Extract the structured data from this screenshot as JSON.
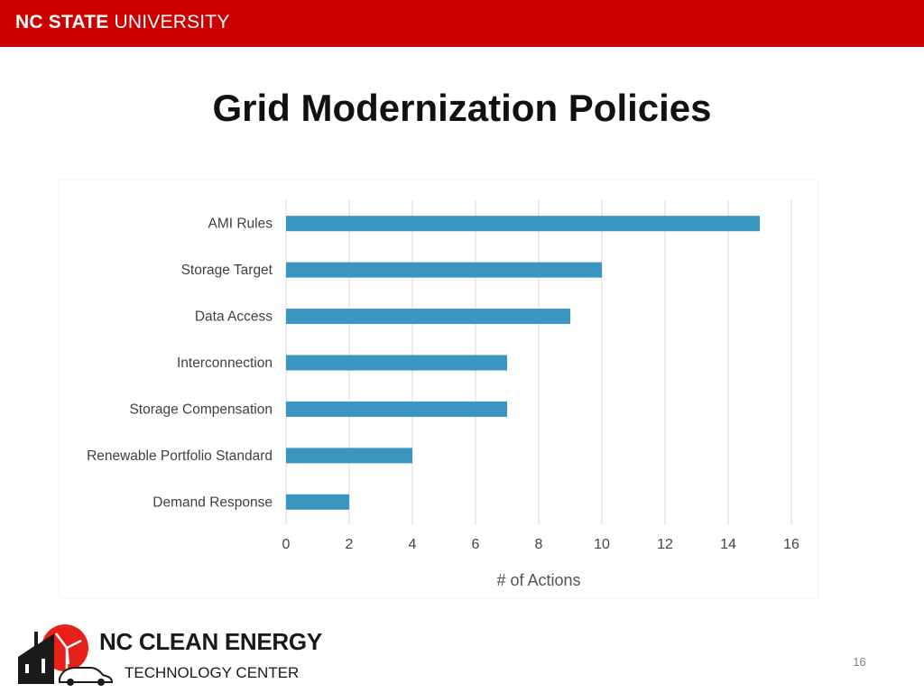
{
  "header": {
    "brand_bold": "NC STATE",
    "brand_rest": " UNIVERSITY",
    "bar_color": "#cc0000"
  },
  "slide": {
    "title": "Grid Modernization Policies",
    "page_number": "16"
  },
  "footer": {
    "logo_line1": "NC CLEAN ENERGY",
    "logo_line2": "TECHNOLOGY CENTER"
  },
  "chart_data": {
    "type": "bar",
    "orientation": "horizontal",
    "categories": [
      "AMI Rules",
      "Storage Target",
      "Data Access",
      "Interconnection",
      "Storage Compensation",
      "Renewable Portfolio Standard",
      "Demand Response"
    ],
    "values": [
      15,
      10,
      9,
      7,
      7,
      4,
      2
    ],
    "title": "",
    "xlabel": "# of Actions",
    "ylabel": "",
    "xlim": [
      0,
      16
    ],
    "xticks": [
      "0",
      "2",
      "4",
      "6",
      "8",
      "10",
      "12",
      "14",
      "16"
    ],
    "grid": true,
    "bar_color": "#3a95c1"
  }
}
